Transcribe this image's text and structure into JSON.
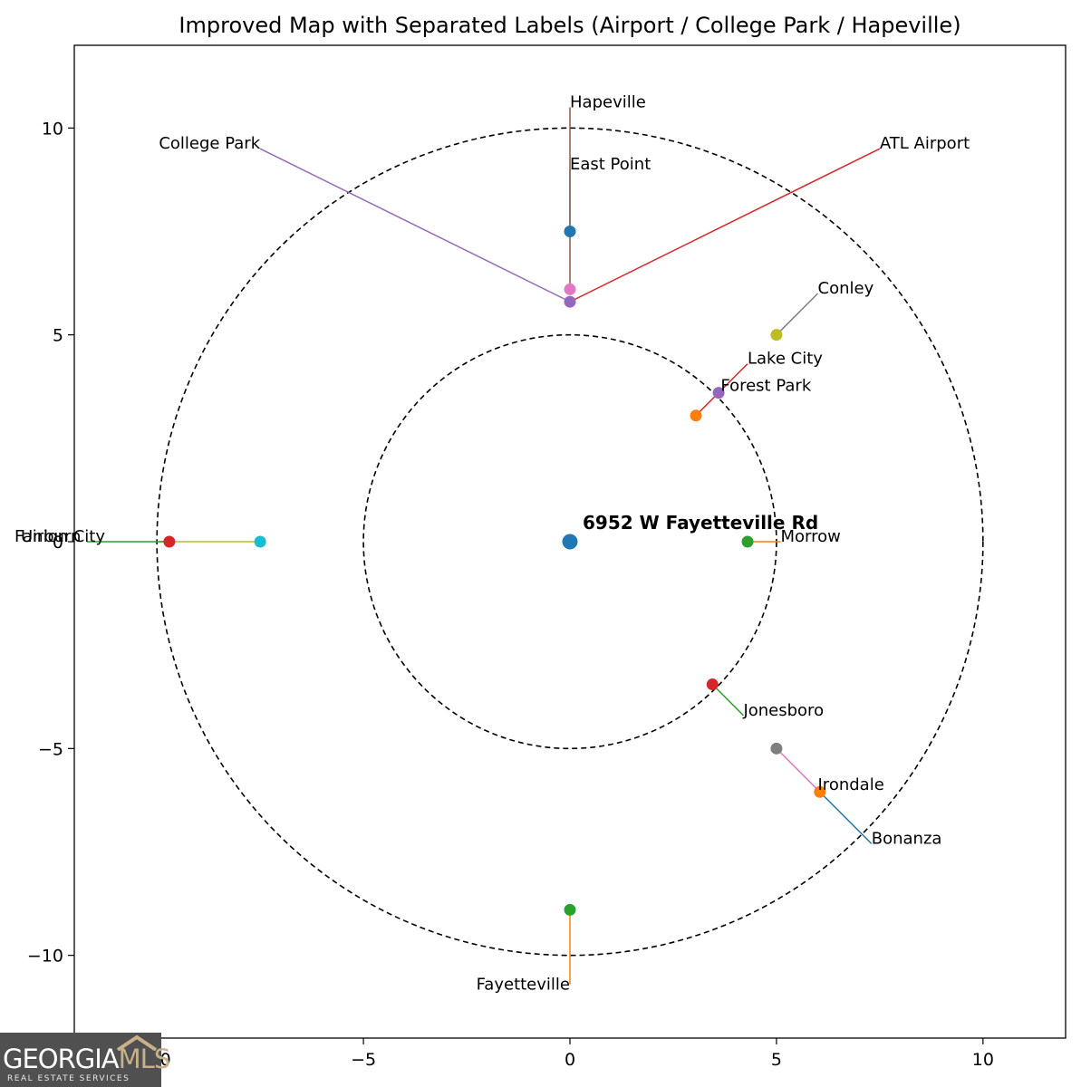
{
  "chart_data": {
    "type": "scatter",
    "title": "Improved Map with Separated Labels (Airport / College Park / Hapeville)",
    "xlabel": "",
    "ylabel": "",
    "xlim": [
      -12,
      12
    ],
    "ylim": [
      -12,
      12
    ],
    "xticks": [
      -10,
      -5,
      0,
      5,
      10
    ],
    "yticks": [
      -10,
      -5,
      0,
      5,
      10
    ],
    "xtick_labels": [
      "-10",
      "−5",
      "0",
      "5",
      "10"
    ],
    "ytick_labels": [
      "−10",
      "−5",
      "0",
      "5",
      "10"
    ],
    "grid": false,
    "rings": [
      5,
      10
    ],
    "center": {
      "label": "6952 W Fayetteville Rd",
      "x": 0,
      "y": 0,
      "color": "#1f77b4"
    },
    "points": [
      {
        "name": "Forest Park",
        "x": 3.6,
        "y": 3.6,
        "color": "#9467bd",
        "label_x": 3.65,
        "label_y": 3.65,
        "line_color": "#1f77b4"
      },
      {
        "name": "Lake City",
        "x": 3.05,
        "y": 3.05,
        "color": "#ff7f0e",
        "label_x": 4.3,
        "label_y": 4.3,
        "line_color": "#d62728"
      },
      {
        "name": "Morrow",
        "x": 4.3,
        "y": 0,
        "color": "#2ca02c",
        "label_x": 5.1,
        "label_y": 0,
        "line_color": "#ff7f0e"
      },
      {
        "name": "Jonesboro",
        "x": 3.45,
        "y": -3.45,
        "color": "#d62728",
        "label_x": 4.2,
        "label_y": -4.2,
        "line_color": "#2ca02c"
      },
      {
        "name": "Conley",
        "x": 5.0,
        "y": 5.0,
        "color": "#bcbd22",
        "label_x": 6.0,
        "label_y": 6.0,
        "line_color": "#7f7f7f"
      },
      {
        "name": "Irondale",
        "x": 5.0,
        "y": -5.0,
        "color": "#7f7f7f",
        "label_x": 6.0,
        "label_y": -6.0,
        "line_color": "#e377c2"
      },
      {
        "name": "Bonanza",
        "x": 6.05,
        "y": -6.05,
        "color": "#ff7f0e",
        "label_x": 7.3,
        "label_y": -7.3,
        "line_color": "#1f77b4"
      },
      {
        "name": "Union City",
        "x": -7.5,
        "y": 0,
        "color": "#17becf",
        "label_x": -9.95,
        "label_y": 0,
        "line_color": "#bcbd22"
      },
      {
        "name": "Fairburn",
        "x": -9.7,
        "y": 0,
        "color": "#d62728",
        "label_x": -11.7,
        "label_y": 0,
        "line_color": "#2ca02c"
      },
      {
        "name": "Fayetteville",
        "x": 0,
        "y": -8.9,
        "color": "#2ca02c",
        "label_x": 0,
        "label_y": -10.7,
        "line_color": "#ff7f0e"
      },
      {
        "name": "East Point",
        "x": 0,
        "y": 7.5,
        "color": "#1f77b4",
        "label_x": 0,
        "label_y": 9.0,
        "line_color": "#17becf"
      },
      {
        "name": "Hapeville",
        "x": 0,
        "y": 6.1,
        "color": "#e377c2",
        "label_x": 0,
        "label_y": 10.5,
        "line_color": "#8c564b"
      },
      {
        "name": "College Park",
        "x": 0,
        "y": 5.8,
        "color": "#9467bd",
        "label_x": -7.5,
        "label_y": 9.5,
        "line_color": "#9467bd"
      },
      {
        "name": "ATL Airport",
        "x": 0,
        "y": 5.8,
        "color": "#9467bd",
        "label_x": 7.5,
        "label_y": 9.5,
        "line_color": "#d62728"
      }
    ]
  },
  "logo": {
    "word_main": "GEORGIA",
    "word_accent": "MLS",
    "subtitle": "REAL ESTATE SERVICES"
  }
}
